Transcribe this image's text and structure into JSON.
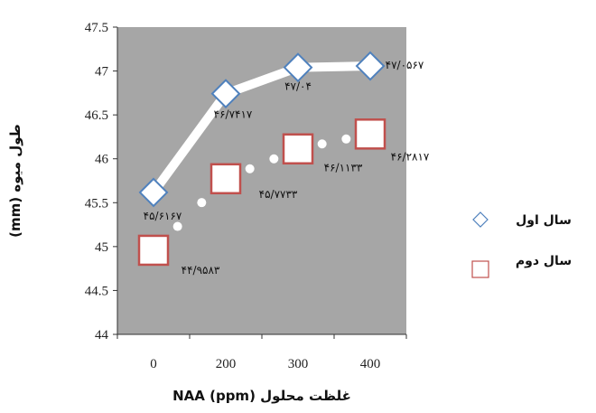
{
  "chart_data": {
    "type": "line",
    "title": "",
    "xlabel": "غلظت محلول NAA (ppm)",
    "ylabel": "طول میوه (mm)",
    "categories": [
      "0",
      "200",
      "300",
      "400"
    ],
    "ylim": [
      44,
      47.5
    ],
    "yticks": [
      "44",
      "44.5",
      "45",
      "45.5",
      "46",
      "46.5",
      "47",
      "47.5"
    ],
    "grid": false,
    "legend": "right",
    "series": [
      {
        "name": "سال اول",
        "marker": "diamond",
        "values": [
          45.617,
          46.742,
          47.04,
          47.057
        ],
        "labels": [
          "۴۵/۶۱۶۷",
          "۴۶/۷۴۱۷",
          "۴۷/۰۴",
          "۴۷/۰۵۶۷"
        ]
      },
      {
        "name": "سال دوم",
        "marker": "square",
        "values": [
          44.958,
          45.773,
          46.113,
          46.282
        ],
        "labels": [
          "۴۴/۹۵۸۳",
          "۴۵/۷۷۳۳",
          "۴۶/۱۱۳۳",
          "۴۶/۲۸۱۷"
        ]
      }
    ],
    "colors": {
      "plot_background": "#a6a6a6",
      "first_series_marker": "#4f81bd",
      "second_series_marker": "#c0504d",
      "line": "#ffffff"
    }
  }
}
